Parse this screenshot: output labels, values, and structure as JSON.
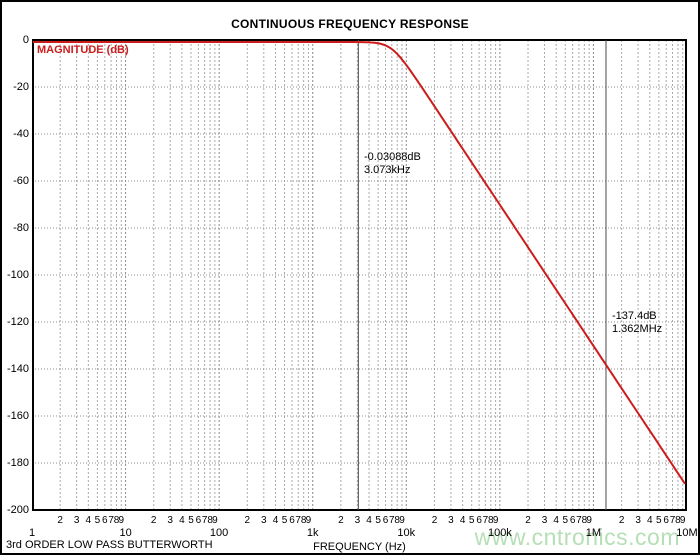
{
  "page": {
    "background": "#ffffff",
    "border_color": "#000000"
  },
  "chart_data": {
    "type": "line",
    "title": "CONTINUOUS FREQUENCY RESPONSE",
    "xlabel": "FREQUENCY (Hz)",
    "ylabel": "MAGNITUDE (dB)",
    "x_scale": "log",
    "xlim_hz": [
      1,
      10000000
    ],
    "ylim_db": [
      -200,
      0
    ],
    "grid": true,
    "x_decade_labels": [
      "1",
      "10",
      "100",
      "1k",
      "10k",
      "100k",
      "1M",
      "10M"
    ],
    "x_minor_digit_labels": [
      "2",
      "3",
      "4",
      "5",
      "6",
      "7",
      "8",
      "9"
    ],
    "y_tick_labels": [
      "0",
      "-20",
      "-40",
      "-60",
      "-80",
      "-100",
      "-120",
      "-140",
      "-160",
      "-180",
      "-200"
    ],
    "y_tick_values": [
      0,
      -20,
      -40,
      -60,
      -80,
      -100,
      -120,
      -140,
      -160,
      -180,
      -200
    ],
    "series": [
      {
        "name": "3rd order Butterworth low-pass magnitude",
        "model": "butterworth_lowpass_magnitude",
        "filter_order": 3,
        "cutoff_hz_estimated": 7000,
        "rolloff_db_per_decade": -60,
        "color": "#cc1c1c",
        "points_freq_db": [
          [
            1,
            0
          ],
          [
            100,
            0
          ],
          [
            1000,
            -0.0002
          ],
          [
            3073,
            -0.03088
          ],
          [
            5000,
            -0.57
          ],
          [
            7000,
            -3.01
          ],
          [
            10000,
            -9.45
          ],
          [
            20000,
            -27.4
          ],
          [
            50000,
            -51.2
          ],
          [
            100000,
            -69.3
          ],
          [
            316000,
            -99.2
          ],
          [
            1000000,
            -129.3
          ],
          [
            1362000,
            -137.4
          ],
          [
            3162000,
            -159.3
          ],
          [
            10000000,
            -189.3
          ]
        ]
      }
    ],
    "cursor_markers": [
      {
        "freq_hz": 3073,
        "db": -0.03088,
        "label_line1": "-0.03088dB",
        "label_line2": "3.073kHz"
      },
      {
        "freq_hz": 1362000,
        "db": -137.4,
        "label_line1": "-137.4dB",
        "label_line2": "1.362MHz"
      }
    ]
  },
  "footer": {
    "caption": "3rd ORDER LOW PASS BUTTERWORTH"
  },
  "watermark": {
    "text": "www.cntronics.com",
    "color": "#b5dfb5"
  },
  "style_colors": {
    "curve": "#cc1c1c",
    "ylabel_text": "#cc1c1c",
    "grid_minor": "#aaaaaa",
    "grid_decade": "#8a8a8a",
    "grid_horizontal": "#8f8f8f",
    "cursor_line": "#4a4a4a",
    "axis": "#000000"
  }
}
